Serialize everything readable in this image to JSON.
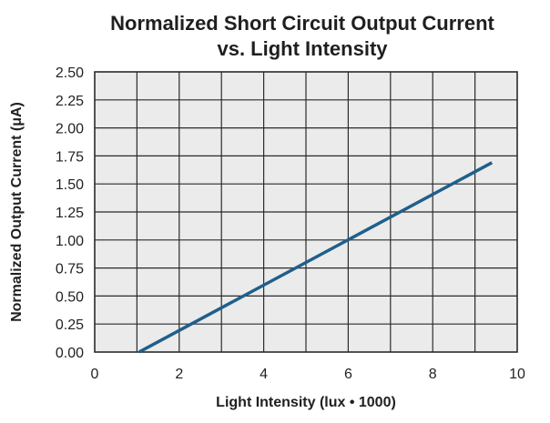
{
  "chart_data": {
    "type": "line",
    "title": "Normalized Short Circuit Output Current",
    "subtitle": "vs. Light Intensity",
    "xlabel": "Light Intensity (lux • 1000)",
    "ylabel": "Normalized Output Current (μA)",
    "xlim": [
      0,
      10
    ],
    "ylim": [
      0,
      2.5
    ],
    "x_ticks": [
      0,
      2,
      4,
      6,
      8,
      10
    ],
    "x_tick_labels": [
      "0",
      "2",
      "4",
      "6",
      "8",
      "10"
    ],
    "y_ticks": [
      0,
      0.25,
      0.5,
      0.75,
      1.0,
      1.25,
      1.5,
      1.75,
      2.0,
      2.25,
      2.5
    ],
    "y_tick_labels": [
      "0.00",
      "0.25",
      "0.50",
      "0.75",
      "1.00",
      "1.25",
      "1.50",
      "1.75",
      "2.00",
      "2.25",
      "2.50"
    ],
    "x_grid_lines": [
      0,
      1,
      2,
      3,
      4,
      5,
      6,
      7,
      8,
      9,
      10
    ],
    "grid": true,
    "series": [
      {
        "color": "#1f5f8b",
        "x": [
          1.05,
          9.4
        ],
        "y": [
          0.0,
          1.69
        ]
      }
    ],
    "colors": {
      "plot_background": "#ebebeb",
      "grid": "#2b2b2b",
      "frame": "#2b2b2b"
    }
  }
}
